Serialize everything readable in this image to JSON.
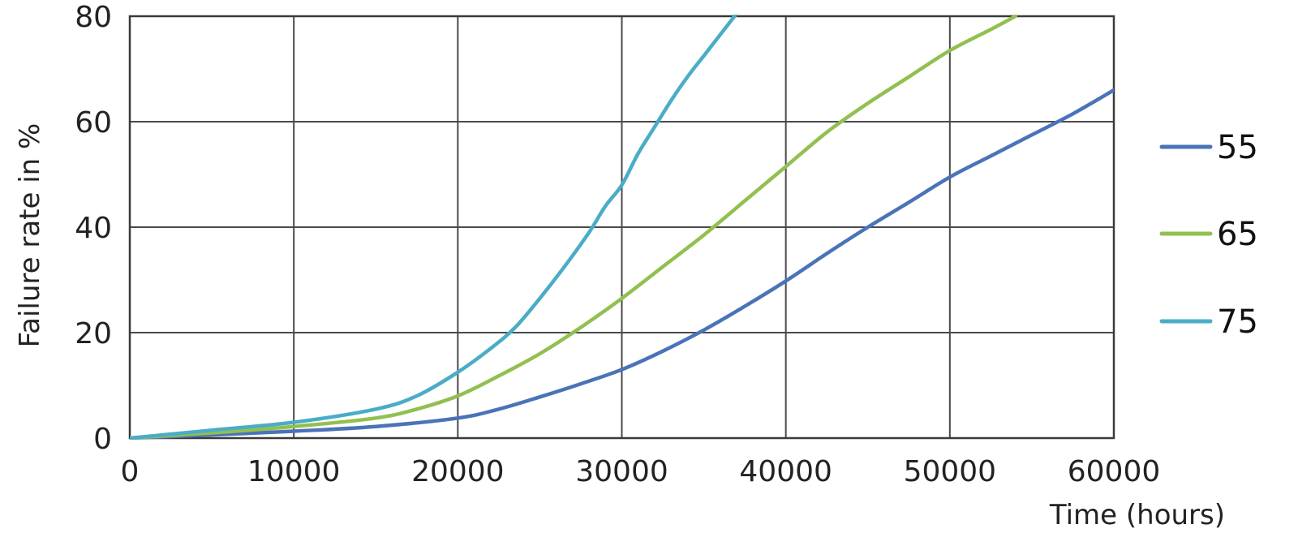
{
  "chart_data": {
    "type": "line",
    "xlabel": "Time (hours)",
    "ylabel": "Failure rate in %",
    "xlim": [
      0,
      60000
    ],
    "ylim": [
      0,
      80
    ],
    "xticks": [
      "0",
      "10000",
      "20000",
      "30000",
      "40000",
      "50000",
      "60000"
    ],
    "yticks": [
      "0",
      "20",
      "40",
      "60",
      "80"
    ],
    "grid": true,
    "legend_position": "right",
    "series": [
      {
        "name": "55",
        "color": "#4a73b8",
        "x": [
          0,
          5000,
          10000,
          15000,
          20000,
          22500,
          25000,
          27500,
          30000,
          32500,
          35000,
          37500,
          40000,
          42500,
          45000,
          47500,
          50000,
          52500,
          55000,
          57500,
          60000
        ],
        "y": [
          0,
          0.6,
          1.3,
          2.2,
          3.8,
          5.5,
          7.8,
          10.3,
          13,
          16.5,
          20.5,
          25,
          29.8,
          35,
          40,
          44.7,
          49.5,
          53.5,
          57.5,
          61.5,
          66
        ]
      },
      {
        "name": "65",
        "color": "#92c050",
        "x": [
          0,
          5000,
          10000,
          15000,
          17500,
          20000,
          22500,
          25000,
          27500,
          30000,
          32500,
          35000,
          37500,
          40000,
          42500,
          45000,
          47500,
          50000,
          52500,
          54000
        ],
        "y": [
          0,
          1,
          2.2,
          3.8,
          5.5,
          8,
          11.8,
          16,
          21,
          26.5,
          32.5,
          38.5,
          45,
          51.5,
          58,
          63.5,
          68.5,
          73.5,
          77.5,
          80
        ]
      },
      {
        "name": "75",
        "color": "#4bacc6",
        "x": [
          0,
          5000,
          10000,
          15000,
          17500,
          20000,
          22000,
          23500,
          25000,
          26500,
          28000,
          29000,
          30000,
          31000,
          32000,
          33000,
          34000,
          35000,
          36000,
          37000
        ],
        "y": [
          0,
          1.5,
          3,
          5.5,
          8,
          12.5,
          17,
          21,
          26.5,
          32.5,
          39,
          44,
          48,
          54,
          59,
          64,
          68.5,
          72.5,
          76.5,
          80.5
        ]
      }
    ]
  }
}
